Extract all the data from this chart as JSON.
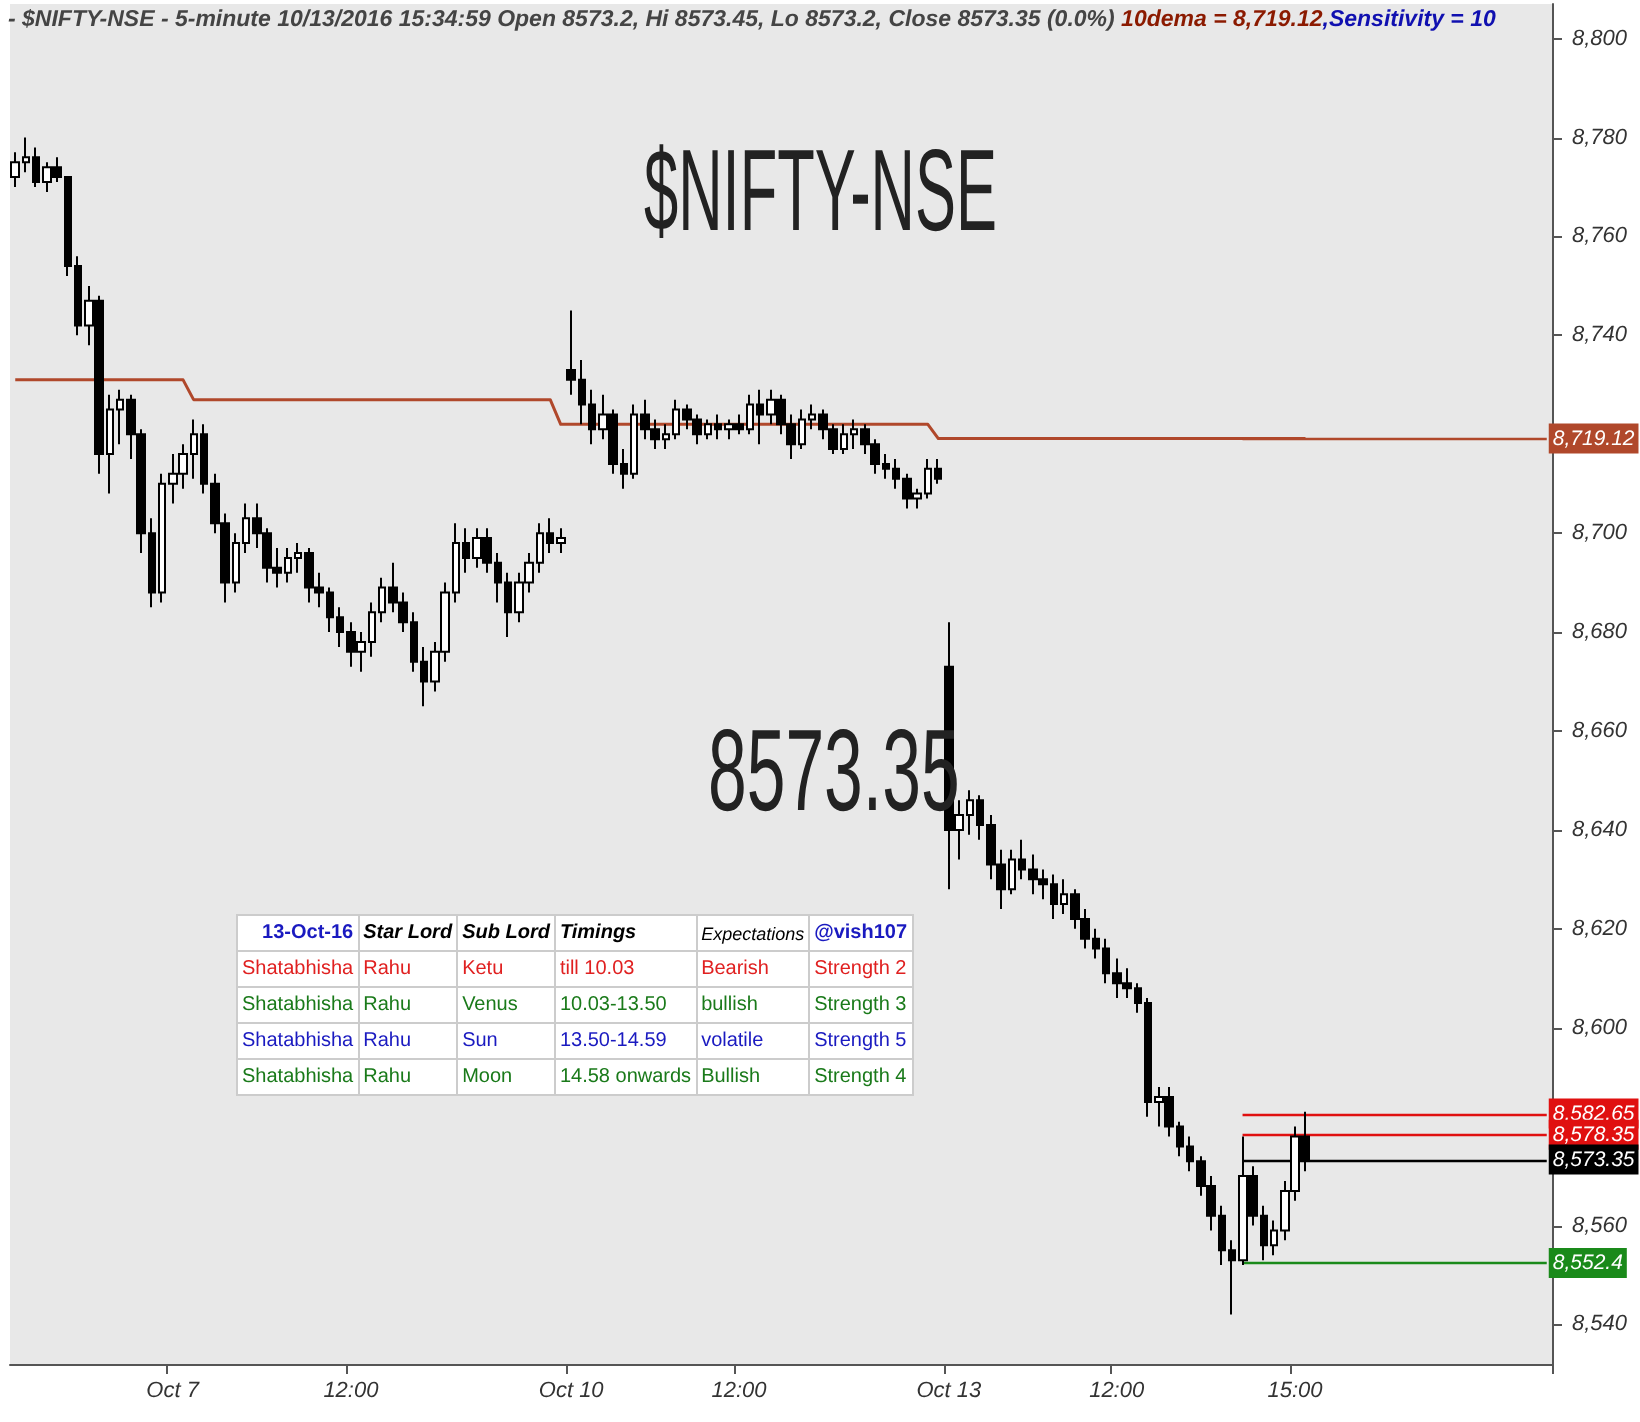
{
  "chart_data": {
    "type": "candlestick",
    "title": "$NIFTY-NSE",
    "subtitle": "- $NIFTY-NSE - 5-minute 10/13/2016 15:34:59 Open 8573.2, Hi 8573.45, Lo 8573.2, Close 8573.35 (0.0%)",
    "annotations": [
      "10dema = 8,719.12",
      ",Sensitivity = 10",
      "8573.35",
      "13-Oct-16",
      "Star Lord",
      "Sub Lord",
      "Timings",
      "Expectations",
      "@vish107",
      "Shatabhisha",
      "Rahu",
      "Ketu",
      "till 10.03",
      "Bearish",
      "Strength 2",
      "Shatabhisha",
      "Rahu",
      "Venus",
      "10.03-13.50",
      "bullish",
      "Strength 3",
      "Shatabhisha",
      "Rahu",
      "Sun",
      "13.50-14.59",
      "volatile",
      "Strength 5",
      "Shatabhisha",
      "Rahu",
      "Moon",
      "14.58 onwards",
      "Bullish",
      "Strength 4"
    ],
    "categories": [
      null,
      null,
      null,
      null,
      null,
      null,
      null,
      null,
      null,
      null,
      null,
      null,
      null,
      null,
      null,
      "Oct 7",
      null,
      null,
      null,
      null,
      null,
      null,
      null,
      null,
      null,
      null,
      null,
      null,
      null,
      null,
      null,
      null,
      "12:00",
      null,
      null,
      null,
      null,
      null,
      null,
      null,
      null,
      null,
      null,
      null,
      null,
      null,
      null,
      null,
      null,
      null,
      null,
      null,
      null,
      "Oct 10",
      null,
      null,
      null,
      null,
      null,
      null,
      null,
      null,
      null,
      null,
      null,
      null,
      null,
      null,
      null,
      "12:00",
      null,
      null,
      null,
      null,
      null,
      null,
      null,
      null,
      null,
      null,
      null,
      null,
      null,
      null,
      null,
      null,
      null,
      null,
      null,
      "Oct 13",
      null,
      null,
      null,
      null,
      null,
      null,
      null,
      null,
      null,
      null,
      null,
      null,
      null,
      null,
      null,
      "12:00",
      null,
      null,
      null,
      null,
      null,
      null,
      null,
      null,
      null,
      null,
      null,
      null,
      null,
      null,
      null,
      null,
      "15:00",
      null,
      null,
      null,
      null,
      null,
      null,
      null,
      null,
      null,
      null,
      null,
      null,
      null,
      null,
      null,
      null,
      null,
      null,
      null,
      null,
      null,
      null,
      null,
      null
    ],
    "series": [
      {
        "type": "candlestick",
        "color": "#000000",
        "ohlc": [
          [
            8772,
            8777,
            8770,
            8775
          ],
          [
            8775,
            8780,
            8773,
            8776
          ],
          [
            8776,
            8778,
            8770,
            8771
          ],
          [
            8771,
            8775,
            8769,
            8774
          ],
          [
            8774,
            8776,
            8771,
            8772
          ],
          [
            8772,
            8772,
            8752,
            8754
          ],
          [
            8754,
            8756,
            8740,
            8742
          ],
          [
            8742,
            8750,
            8738,
            8747
          ],
          [
            8747,
            8748,
            8712,
            8716
          ],
          [
            8716,
            8728,
            8708,
            8725
          ],
          [
            8725,
            8729,
            8718,
            8727
          ],
          [
            8727,
            8728,
            8715,
            8720
          ],
          [
            8720,
            8721,
            8696,
            8700
          ],
          [
            8700,
            8703,
            8685,
            8688
          ],
          [
            8688,
            8712,
            8686,
            8710
          ],
          [
            8710,
            8716,
            8706,
            8712
          ],
          [
            8712,
            8718,
            8709,
            8716
          ],
          [
            8716,
            8723,
            8711,
            8720
          ],
          [
            8720,
            8722,
            8708,
            8710
          ],
          [
            8710,
            8712,
            8700,
            8702
          ],
          [
            8702,
            8704,
            8686,
            8690
          ],
          [
            8690,
            8700,
            8688,
            8698
          ],
          [
            8698,
            8706,
            8696,
            8703
          ],
          [
            8703,
            8706,
            8697,
            8700
          ],
          [
            8700,
            8701,
            8690,
            8693
          ],
          [
            8693,
            8697,
            8689,
            8692
          ],
          [
            8692,
            8697,
            8690,
            8695
          ],
          [
            8695,
            8698,
            8692,
            8696
          ],
          [
            8696,
            8697,
            8686,
            8689
          ],
          [
            8689,
            8692,
            8685,
            8688
          ],
          [
            8688,
            8689,
            8680,
            8683
          ],
          [
            8683,
            8685,
            8677,
            8680
          ],
          [
            8680,
            8682,
            8673,
            8676
          ],
          [
            8676,
            8680,
            8672,
            8678
          ],
          [
            8678,
            8686,
            8675,
            8684
          ],
          [
            8684,
            8691,
            8682,
            8689
          ],
          [
            8689,
            8694,
            8684,
            8686
          ],
          [
            8686,
            8688,
            8680,
            8682
          ],
          [
            8682,
            8684,
            8672,
            8674
          ],
          [
            8674,
            8677,
            8665,
            8670
          ],
          [
            8670,
            8678,
            8668,
            8676
          ],
          [
            8676,
            8690,
            8674,
            8688
          ],
          [
            8688,
            8702,
            8686,
            8698
          ],
          [
            8698,
            8701,
            8692,
            8695
          ],
          [
            8695,
            8701,
            8693,
            8699
          ],
          [
            8699,
            8701,
            8692,
            8694
          ],
          [
            8694,
            8696,
            8686,
            8690
          ],
          [
            8690,
            8692,
            8679,
            8684
          ],
          [
            8684,
            8692,
            8682,
            8690
          ],
          [
            8690,
            8696,
            8688,
            8694
          ],
          [
            8694,
            8702,
            8692,
            8700
          ],
          [
            8700,
            8703,
            8696,
            8698
          ],
          [
            8698,
            8701,
            8696,
            8699
          ],
          [
            8733,
            8745,
            8728,
            8731
          ],
          [
            8731,
            8735,
            8722,
            8726
          ],
          [
            8726,
            8729,
            8718,
            8721
          ],
          [
            8721,
            8728,
            8719,
            8724
          ],
          [
            8724,
            8725,
            8712,
            8714
          ],
          [
            8714,
            8717,
            8709,
            8712
          ],
          [
            8712,
            8726,
            8711,
            8724
          ],
          [
            8724,
            8727,
            8719,
            8721
          ],
          [
            8721,
            8723,
            8717,
            8719
          ],
          [
            8719,
            8722,
            8717,
            8720
          ],
          [
            8720,
            8727,
            8719,
            8725
          ],
          [
            8725,
            8726,
            8721,
            8723
          ],
          [
            8723,
            8724,
            8718,
            8720
          ],
          [
            8720,
            8723,
            8719,
            8722
          ],
          [
            8722,
            8724,
            8719,
            8721
          ],
          [
            8721,
            8723,
            8719,
            8722
          ],
          [
            8722,
            8724,
            8720,
            8721
          ],
          [
            8721,
            8728,
            8720,
            8726
          ],
          [
            8726,
            8729,
            8718,
            8724
          ],
          [
            8724,
            8729,
            8722,
            8727
          ],
          [
            8727,
            8728,
            8720,
            8722
          ],
          [
            8722,
            8724,
            8715,
            8718
          ],
          [
            8718,
            8725,
            8717,
            8723
          ],
          [
            8723,
            8726,
            8721,
            8724
          ],
          [
            8724,
            8725,
            8719,
            8721
          ],
          [
            8721,
            8722,
            8716,
            8717
          ],
          [
            8717,
            8722,
            8716,
            8720
          ],
          [
            8720,
            8723,
            8717,
            8721
          ],
          [
            8721,
            8722,
            8716,
            8718
          ],
          [
            8718,
            8719,
            8712,
            8714
          ],
          [
            8714,
            8716,
            8711,
            8713
          ],
          [
            8713,
            8715,
            8709,
            8711
          ],
          [
            8711,
            8712,
            8705,
            8707
          ],
          [
            8707,
            8709,
            8705,
            8708
          ],
          [
            8708,
            8715,
            8707,
            8713
          ],
          [
            8713,
            8715,
            8710,
            8711
          ],
          [
            8673,
            8682,
            8628,
            8640
          ],
          [
            8640,
            8646,
            8634,
            8643
          ],
          [
            8643,
            8648,
            8639,
            8646
          ],
          [
            8646,
            8647,
            8638,
            8641
          ],
          [
            8641,
            8643,
            8630,
            8633
          ],
          [
            8633,
            8636,
            8624,
            8628
          ],
          [
            8628,
            8636,
            8627,
            8634
          ],
          [
            8634,
            8638,
            8630,
            8632
          ],
          [
            8632,
            8635,
            8627,
            8630
          ],
          [
            8630,
            8632,
            8626,
            8629
          ],
          [
            8629,
            8631,
            8622,
            8625
          ],
          [
            8625,
            8630,
            8623,
            8627
          ],
          [
            8627,
            8628,
            8620,
            8622
          ],
          [
            8622,
            8624,
            8616,
            8618
          ],
          [
            8618,
            8620,
            8614,
            8616
          ],
          [
            8616,
            8618,
            8609,
            8611
          ],
          [
            8611,
            8614,
            8606,
            8609
          ],
          [
            8609,
            8612,
            8606,
            8608
          ],
          [
            8608,
            8609,
            8603,
            8605
          ],
          [
            8605,
            8606,
            8582,
            8585
          ],
          [
            8585,
            8588,
            8580,
            8586
          ],
          [
            8586,
            8588,
            8578,
            8580
          ],
          [
            8580,
            8581,
            8574,
            8576
          ],
          [
            8576,
            8578,
            8571,
            8573
          ],
          [
            8573,
            8574,
            8566,
            8568
          ],
          [
            8568,
            8570,
            8559,
            8562
          ],
          [
            8562,
            8564,
            8552,
            8555
          ],
          [
            8555,
            8557,
            8542,
            8553
          ],
          [
            8553,
            8578,
            8552,
            8570
          ],
          [
            8570,
            8572,
            8560,
            8562
          ],
          [
            8562,
            8564,
            8553,
            8556
          ],
          [
            8556,
            8561,
            8554,
            8559
          ],
          [
            8559,
            8569,
            8557,
            8567
          ],
          [
            8567,
            8580,
            8565,
            8578
          ],
          [
            8578,
            8583,
            8571,
            8573.35
          ],
          null,
          null,
          null,
          null,
          null,
          null,
          null,
          null,
          null,
          null,
          null,
          null,
          null,
          null,
          null,
          null,
          null,
          null,
          null,
          null,
          null,
          null,
          null
        ]
      },
      {
        "type": "line",
        "color": "#b0482b",
        "values": [
          8731,
          8731,
          8731,
          8731,
          8731,
          8731,
          8731,
          8731,
          8731,
          8731,
          8731,
          8731,
          8731,
          8731,
          8731,
          8731,
          8731,
          8727,
          8727,
          8727,
          8727,
          8727,
          8727,
          8727,
          8727,
          8727,
          8727,
          8727,
          8727,
          8727,
          8727,
          8727,
          8727,
          8727,
          8727,
          8727,
          8727,
          8727,
          8727,
          8727,
          8727,
          8727,
          8727,
          8727,
          8727,
          8727,
          8727,
          8727,
          8727,
          8727,
          8727,
          8727,
          8722,
          8722,
          8722,
          8722,
          8722,
          8722,
          8722,
          8722,
          8722,
          8722,
          8722,
          8722,
          8722,
          8722,
          8722,
          8722,
          8722,
          8722,
          8722,
          8722,
          8722,
          8722,
          8722,
          8722,
          8722,
          8722,
          8722,
          8722,
          8722,
          8722,
          8722,
          8722,
          8722,
          8722,
          8722,
          8722,
          8719.12,
          8719.12,
          8719.12,
          8719.12,
          8719.12,
          8719.12,
          8719.12,
          8719.12,
          8719.12,
          8719.12,
          8719.12,
          8719.12,
          8719.12,
          8719.12,
          8719.12,
          8719.12,
          8719.12,
          8719.12,
          8719.12,
          8719.12,
          8719.12,
          8719.12,
          8719.12,
          8719.12,
          8719.12,
          8719.12,
          8719.12,
          8719.12,
          8719.12,
          8719.12,
          8719.12,
          8719.12,
          8719.12,
          8719.12,
          8719.12,
          8719.12,
          null,
          null,
          null,
          null,
          null,
          null,
          null,
          null,
          null,
          null,
          null,
          null,
          null,
          null,
          null,
          null,
          null,
          null,
          null,
          null,
          null,
          null,
          null
        ]
      }
    ],
    "ref_lines": [
      {
        "axis": "y",
        "value": 8719.12,
        "label": "8,719.12",
        "color": "#b0482b"
      },
      {
        "axis": "y",
        "value": 8582.65,
        "label": "8,582.65",
        "color": "#e01010"
      },
      {
        "axis": "y",
        "value": 8578.35,
        "label": "8,578.35",
        "color": "#e01010"
      },
      {
        "axis": "y",
        "value": 8573.35,
        "label": "8,573.35",
        "color": "#000000"
      },
      {
        "axis": "y",
        "value": 8552.4,
        "label": "8,552.4",
        "color": "#1a8a1a"
      }
    ],
    "ylim": [
      8532,
      8807
    ],
    "yticks": [
      {
        "value": 8540,
        "label": "8,540"
      },
      {
        "value": 8560,
        "label": "8,560"
      },
      {
        "value": 8580,
        "label": null
      },
      {
        "value": 8600,
        "label": "8,600"
      },
      {
        "value": 8620,
        "label": "8,620"
      },
      {
        "value": 8640,
        "label": "8,640"
      },
      {
        "value": 8660,
        "label": "8,660"
      },
      {
        "value": 8680,
        "label": "8,680"
      },
      {
        "value": 8700,
        "label": "8,700"
      },
      {
        "value": 8720,
        "label": null
      },
      {
        "value": 8740,
        "label": "8,740"
      },
      {
        "value": 8760,
        "label": "8,760"
      },
      {
        "value": 8780,
        "label": "8,780"
      },
      {
        "value": 8800,
        "label": "8,800"
      }
    ],
    "grid": false
  }
}
